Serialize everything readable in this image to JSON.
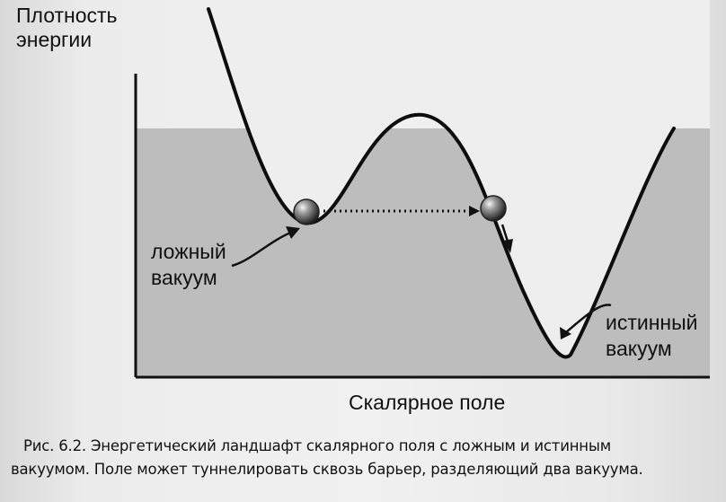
{
  "y_axis_label": [
    "Плотность",
    "энергии"
  ],
  "x_axis_label": "Скалярное поле",
  "false_vacuum_label": [
    "ложный",
    "вакуум"
  ],
  "true_vacuum_label": [
    "истинный",
    "вакуум"
  ],
  "caption": [
    "Рис. 6.2. Энергетический ландшафт скалярного поля с ложным и истинным",
    "вакуумом. Поле может туннелировать сквозь барьер, разделяющий два вакуума."
  ],
  "colors": {
    "curve": "#0d0d0d",
    "fill": "#bdbdbd",
    "ball": "#7a7a7a",
    "page": "#eeeeee"
  }
}
